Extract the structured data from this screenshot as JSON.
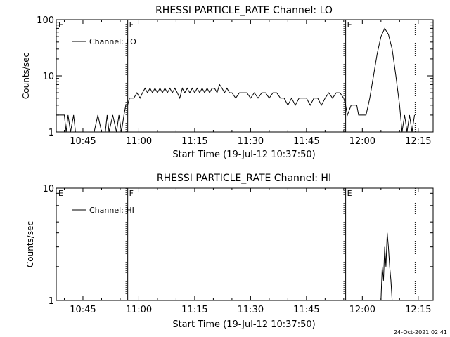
{
  "footer": {
    "timestamp": "24-Oct-2021 02:41"
  },
  "chart_data": [
    {
      "type": "line",
      "title": "RHESSI PARTICLE_RATE Channel: LO",
      "xlabel": "Start Time (19-Jul-12 10:37:50)",
      "ylabel": "Counts/sec",
      "y_scale": "log",
      "ylim": [
        1,
        100
      ],
      "y_ticks": [
        {
          "value": 1,
          "label": "1"
        },
        {
          "value": 10,
          "label": "10"
        },
        {
          "value": 100,
          "label": "100"
        }
      ],
      "xlim": [
        "10:37:50",
        "12:19:00"
      ],
      "x_ticks": [
        "10:45",
        "11:00",
        "11:15",
        "11:30",
        "11:45",
        "12:00",
        "12:15"
      ],
      "legend": {
        "position": "top-left",
        "entries": [
          "Channel: LO"
        ]
      },
      "markers": [
        {
          "label": "E",
          "time": "10:37:50",
          "style": "none"
        },
        {
          "label": "F",
          "time": "10:56:50",
          "style": "solid-dotted"
        },
        {
          "label": "E",
          "time": "11:55:20",
          "style": "solid-dotted"
        },
        {
          "label": "",
          "time": "12:14:10",
          "style": "dotted"
        }
      ],
      "series": [
        {
          "name": "Channel: LO",
          "points": [
            [
              "10:38:00",
              2
            ],
            [
              "10:40:00",
              2
            ],
            [
              "10:40:30",
              1
            ],
            [
              "10:41:00",
              2
            ],
            [
              "10:41:40",
              1
            ],
            [
              "10:42:30",
              2
            ],
            [
              "10:43:00",
              1
            ],
            [
              "10:48:00",
              1
            ],
            [
              "10:49:00",
              2
            ],
            [
              "10:50:00",
              1
            ],
            [
              "10:51:00",
              1
            ],
            [
              "10:51:30",
              2
            ],
            [
              "10:52:00",
              1
            ],
            [
              "10:53:00",
              2
            ],
            [
              "10:54:00",
              1
            ],
            [
              "10:54:40",
              2
            ],
            [
              "10:55:20",
              1
            ],
            [
              "10:56:00",
              2
            ],
            [
              "10:56:30",
              3
            ],
            [
              "10:57:00",
              3
            ],
            [
              "10:57:30",
              4
            ],
            [
              "10:58:40",
              4
            ],
            [
              "10:59:30",
              5
            ],
            [
              "11:00:20",
              4
            ],
            [
              "11:01:00",
              5
            ],
            [
              "11:01:40",
              6
            ],
            [
              "11:02:20",
              5
            ],
            [
              "11:03:00",
              6
            ],
            [
              "11:03:40",
              5
            ],
            [
              "11:04:20",
              6
            ],
            [
              "11:05:00",
              5
            ],
            [
              "11:05:40",
              6
            ],
            [
              "11:06:20",
              5
            ],
            [
              "11:07:00",
              6
            ],
            [
              "11:07:40",
              5
            ],
            [
              "11:08:20",
              6
            ],
            [
              "11:09:00",
              5
            ],
            [
              "11:09:40",
              6
            ],
            [
              "11:10:20",
              5
            ],
            [
              "11:11:00",
              4
            ],
            [
              "11:11:40",
              6
            ],
            [
              "11:12:20",
              5
            ],
            [
              "11:13:00",
              6
            ],
            [
              "11:13:40",
              5
            ],
            [
              "11:14:20",
              6
            ],
            [
              "11:15:00",
              5
            ],
            [
              "11:15:40",
              6
            ],
            [
              "11:16:20",
              5
            ],
            [
              "11:17:00",
              6
            ],
            [
              "11:17:40",
              5
            ],
            [
              "11:18:20",
              6
            ],
            [
              "11:19:00",
              5
            ],
            [
              "11:19:40",
              6
            ],
            [
              "11:20:20",
              6
            ],
            [
              "11:21:00",
              5
            ],
            [
              "11:21:40",
              7
            ],
            [
              "11:22:20",
              6
            ],
            [
              "11:23:00",
              5
            ],
            [
              "11:23:40",
              6
            ],
            [
              "11:24:20",
              5
            ],
            [
              "11:25:00",
              5
            ],
            [
              "11:26:00",
              4
            ],
            [
              "11:27:00",
              5
            ],
            [
              "11:28:00",
              5
            ],
            [
              "11:29:00",
              5
            ],
            [
              "11:30:00",
              4
            ],
            [
              "11:31:00",
              5
            ],
            [
              "11:32:00",
              4
            ],
            [
              "11:33:00",
              5
            ],
            [
              "11:34:00",
              5
            ],
            [
              "11:35:00",
              4
            ],
            [
              "11:36:00",
              5
            ],
            [
              "11:37:00",
              5
            ],
            [
              "11:38:00",
              4
            ],
            [
              "11:39:00",
              4
            ],
            [
              "11:40:00",
              3
            ],
            [
              "11:41:00",
              4
            ],
            [
              "11:42:00",
              3
            ],
            [
              "11:43:00",
              4
            ],
            [
              "11:44:00",
              4
            ],
            [
              "11:45:00",
              4
            ],
            [
              "11:46:00",
              3
            ],
            [
              "11:47:00",
              4
            ],
            [
              "11:48:00",
              4
            ],
            [
              "11:49:00",
              3
            ],
            [
              "11:50:00",
              4
            ],
            [
              "11:51:00",
              5
            ],
            [
              "11:52:00",
              4
            ],
            [
              "11:53:00",
              5
            ],
            [
              "11:54:00",
              5
            ],
            [
              "11:55:00",
              4
            ],
            [
              "11:55:30",
              3
            ],
            [
              "11:56:00",
              2
            ],
            [
              "11:57:00",
              3
            ],
            [
              "11:58:30",
              3
            ],
            [
              "11:59:00",
              2
            ],
            [
              "12:00:00",
              2
            ],
            [
              "12:01:00",
              2
            ],
            [
              "12:02:00",
              4
            ],
            [
              "12:03:00",
              10
            ],
            [
              "12:04:00",
              25
            ],
            [
              "12:05:00",
              50
            ],
            [
              "12:06:00",
              70
            ],
            [
              "12:07:00",
              55
            ],
            [
              "12:08:00",
              30
            ],
            [
              "12:09:00",
              10
            ],
            [
              "12:10:00",
              3
            ],
            [
              "12:10:40",
              1
            ],
            [
              "12:11:20",
              2
            ],
            [
              "12:12:00",
              1
            ],
            [
              "12:12:40",
              2
            ],
            [
              "12:13:20",
              1
            ],
            [
              "12:14:00",
              2
            ]
          ]
        }
      ]
    },
    {
      "type": "line",
      "title": "RHESSI PARTICLE_RATE Channel: HI",
      "xlabel": "Start Time (19-Jul-12 10:37:50)",
      "ylabel": "Counts/sec",
      "y_scale": "log",
      "ylim": [
        1,
        10
      ],
      "y_ticks": [
        {
          "value": 1,
          "label": "1"
        },
        {
          "value": 10,
          "label": "10"
        }
      ],
      "xlim": [
        "10:37:50",
        "12:19:00"
      ],
      "x_ticks": [
        "10:45",
        "11:00",
        "11:15",
        "11:30",
        "11:45",
        "12:00",
        "12:15"
      ],
      "legend": {
        "position": "top-left",
        "entries": [
          "Channel: HI"
        ]
      },
      "markers": [
        {
          "label": "E",
          "time": "10:37:50",
          "style": "none"
        },
        {
          "label": "F",
          "time": "10:56:50",
          "style": "solid-dotted"
        },
        {
          "label": "E",
          "time": "11:55:20",
          "style": "solid-dotted"
        },
        {
          "label": "",
          "time": "12:14:10",
          "style": "dotted"
        }
      ],
      "series": [
        {
          "name": "Channel: HI",
          "points": [
            [
              "12:05:00",
              1
            ],
            [
              "12:05:20",
              2
            ],
            [
              "12:05:40",
              1.5
            ],
            [
              "12:06:00",
              3
            ],
            [
              "12:06:20",
              2
            ],
            [
              "12:06:40",
              4
            ],
            [
              "12:07:00",
              3
            ],
            [
              "12:07:20",
              2
            ],
            [
              "12:07:40",
              1.5
            ],
            [
              "12:08:00",
              1
            ]
          ]
        }
      ]
    }
  ]
}
